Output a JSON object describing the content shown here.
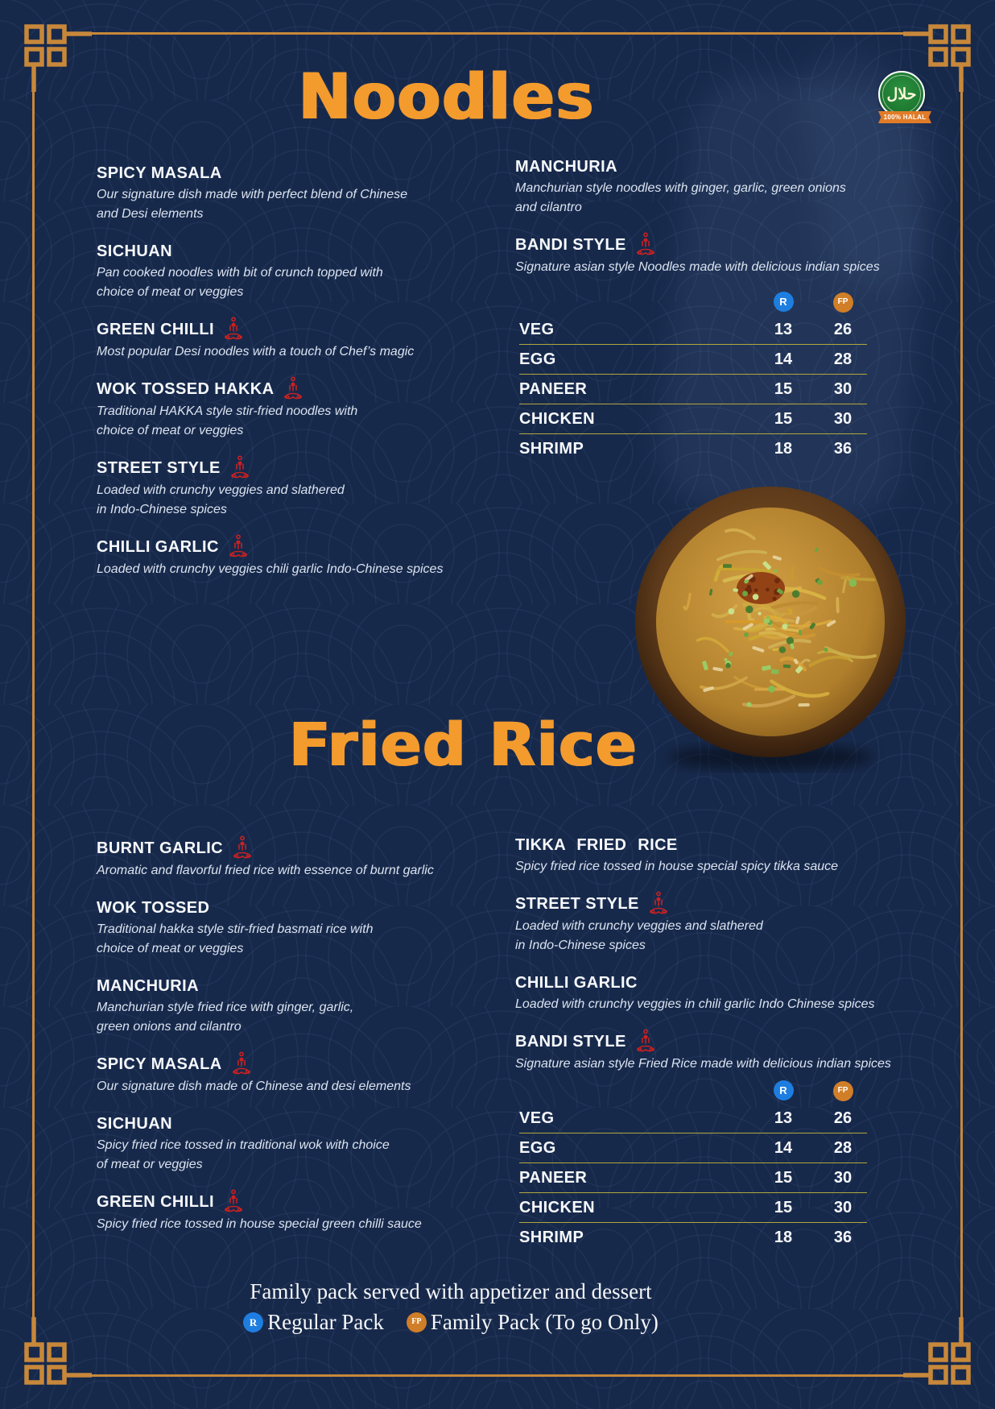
{
  "colors": {
    "background": "#17294B",
    "accent_orange": "#F49B2E",
    "gold_border": "#C8883A",
    "spice_red": "#C92121",
    "divider_yellow": "#B1A73D",
    "regular_badge_blue": "#1E7EE0",
    "family_badge_orange": "#D07E27",
    "halal_green": "#1E7A31"
  },
  "badge_halal": {
    "arabic": "حلال",
    "label": "100% HALAL"
  },
  "noodles": {
    "title": "Noodles",
    "left": [
      {
        "name": "SPICY MASALA",
        "spicy": false,
        "desc": "Our signature dish made with perfect blend of Chinese\nand Desi elements"
      },
      {
        "name": "SICHUAN",
        "spicy": false,
        "desc": "Pan cooked noodles with bit of crunch topped with\nchoice of meat or veggies"
      },
      {
        "name": "GREEN CHILLI",
        "spicy": true,
        "desc": "Most popular Desi noodles with a touch of Chef’s magic"
      },
      {
        "name": "WOK TOSSED HAKKA",
        "spicy": true,
        "desc": "Traditional HAKKA style stir-fried noodles with\nchoice of meat or veggies"
      },
      {
        "name": "STREET STYLE",
        "spicy": true,
        "desc": "Loaded with crunchy veggies and slathered\nin Indo-Chinese spices"
      },
      {
        "name": "CHILLI GARLIC",
        "spicy": true,
        "desc": "Loaded with crunchy veggies chili garlic Indo-Chinese spices"
      }
    ],
    "right": [
      {
        "name": "MANCHURIA",
        "spicy": false,
        "desc": "Manchurian style noodles with ginger, garlic, green onions\nand cilantro"
      },
      {
        "name": "BANDI STYLE",
        "spicy": true,
        "desc": "Signature asian style Noodles made with delicious indian spices"
      }
    ]
  },
  "fried_rice": {
    "title": "Fried Rice",
    "left": [
      {
        "name": "BURNT GARLIC",
        "spicy": true,
        "desc": "Aromatic and flavorful fried rice with essence of burnt garlic"
      },
      {
        "name": "WOK TOSSED",
        "spicy": false,
        "desc": "Traditional hakka style stir-fried basmati rice with\nchoice of meat or veggies"
      },
      {
        "name": "MANCHURIA",
        "spicy": false,
        "desc": "Manchurian style fried rice with ginger, garlic,\ngreen onions and cilantro"
      },
      {
        "name": "SPICY MASALA",
        "spicy": true,
        "desc": "Our signature dish made of Chinese and desi elements"
      },
      {
        "name": "SICHUAN",
        "spicy": false,
        "desc": "Spicy fried rice tossed in traditional wok with choice\nof meat or veggies"
      },
      {
        "name": "GREEN CHILLI",
        "spicy": true,
        "desc": "Spicy fried rice tossed in house special green chilli sauce"
      }
    ],
    "right": [
      {
        "name": "TIKKA FRIED RICE",
        "spicy": false,
        "desc": "Spicy fried rice tossed in house special spicy tikka sauce"
      },
      {
        "name": "STREET STYLE",
        "spicy": true,
        "desc": "Loaded with crunchy veggies and slathered\nin Indo-Chinese spices"
      },
      {
        "name": "CHILLI GARLIC",
        "spicy": false,
        "desc": "Loaded with crunchy veggies in chili garlic Indo Chinese spices"
      },
      {
        "name": "BANDI STYLE",
        "spicy": true,
        "desc": "Signature asian style Fried Rice made with delicious indian spices"
      }
    ]
  },
  "prices": {
    "regular_badge": "R",
    "family_badge": "FP",
    "rows": [
      {
        "item": "VEG",
        "regular": "13",
        "family": "26"
      },
      {
        "item": "EGG",
        "regular": "14",
        "family": "28"
      },
      {
        "item": "PANEER",
        "regular": "15",
        "family": "30"
      },
      {
        "item": "CHICKEN",
        "regular": "15",
        "family": "30"
      },
      {
        "item": "SHRIMP",
        "regular": "18",
        "family": "36"
      }
    ]
  },
  "footer": {
    "note": "Family pack served with appetizer and dessert",
    "regular_badge": "R",
    "regular_label": "Regular Pack",
    "family_badge": "FP",
    "family_label": "Family Pack (To go Only)"
  }
}
